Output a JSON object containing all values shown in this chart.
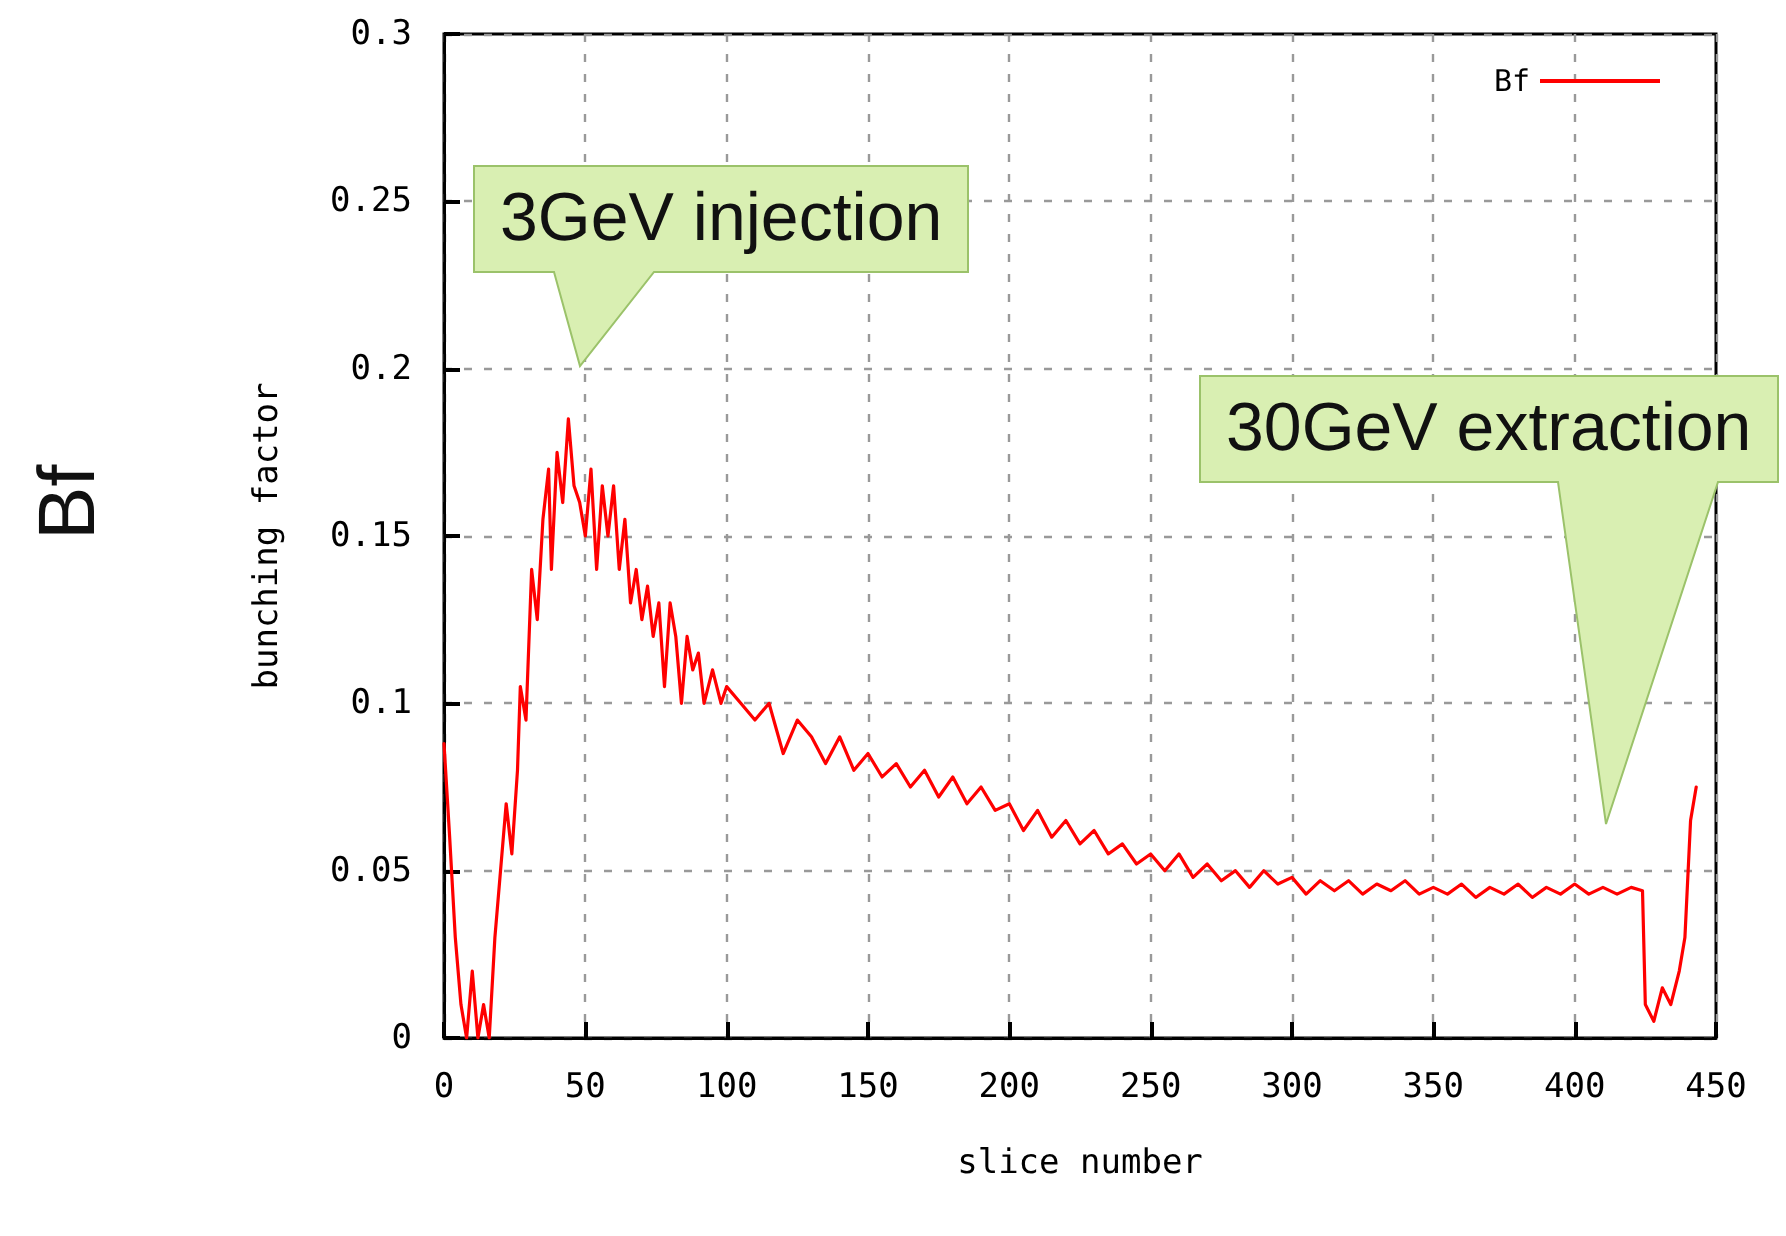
{
  "chart_data": {
    "type": "line",
    "xlabel": "slice number",
    "ylabel": "bunching factor",
    "xlim": [
      0,
      450
    ],
    "xticks": [
      0,
      50,
      100,
      150,
      200,
      250,
      300,
      350,
      400,
      450
    ],
    "ylim": [
      0,
      0.3
    ],
    "yticks": [
      0,
      0.05,
      0.1,
      0.15,
      0.2,
      0.25,
      0.3
    ],
    "grid": true,
    "legend": "top right",
    "marker": "none",
    "line_style": "solid",
    "annotations": [
      "Bf",
      "3GeV injection",
      "30GeV extraction"
    ],
    "series": [
      {
        "name": "Bf",
        "color": "#ff0000",
        "x": [
          0,
          2,
          4,
          6,
          8,
          10,
          12,
          14,
          16,
          18,
          20,
          22,
          24,
          26,
          27,
          29,
          31,
          33,
          35,
          37,
          38,
          40,
          42,
          44,
          46,
          48,
          50,
          52,
          54,
          56,
          58,
          60,
          62,
          64,
          66,
          68,
          70,
          72,
          74,
          76,
          78,
          80,
          82,
          84,
          86,
          88,
          90,
          92,
          95,
          98,
          100,
          105,
          110,
          115,
          120,
          125,
          130,
          135,
          140,
          145,
          150,
          155,
          160,
          165,
          170,
          175,
          180,
          185,
          190,
          195,
          200,
          205,
          210,
          215,
          220,
          225,
          230,
          235,
          240,
          245,
          250,
          255,
          260,
          265,
          270,
          275,
          280,
          285,
          290,
          295,
          300,
          305,
          310,
          315,
          320,
          325,
          330,
          335,
          340,
          345,
          350,
          355,
          360,
          365,
          370,
          375,
          380,
          385,
          390,
          395,
          400,
          405,
          410,
          415,
          420,
          424,
          425,
          428,
          431,
          434,
          437,
          439,
          441,
          443
        ],
        "values": [
          0.088,
          0.06,
          0.03,
          0.01,
          0,
          0.02,
          0,
          0.01,
          0,
          0.03,
          0.05,
          0.07,
          0.055,
          0.08,
          0.105,
          0.095,
          0.14,
          0.125,
          0.155,
          0.17,
          0.14,
          0.175,
          0.16,
          0.185,
          0.165,
          0.16,
          0.15,
          0.17,
          0.14,
          0.165,
          0.15,
          0.165,
          0.14,
          0.155,
          0.13,
          0.14,
          0.125,
          0.135,
          0.12,
          0.13,
          0.105,
          0.13,
          0.12,
          0.1,
          0.12,
          0.11,
          0.115,
          0.1,
          0.11,
          0.1,
          0.105,
          0.1,
          0.095,
          0.1,
          0.085,
          0.095,
          0.09,
          0.082,
          0.09,
          0.08,
          0.085,
          0.078,
          0.082,
          0.075,
          0.08,
          0.072,
          0.078,
          0.07,
          0.075,
          0.068,
          0.07,
          0.062,
          0.068,
          0.06,
          0.065,
          0.058,
          0.062,
          0.055,
          0.058,
          0.052,
          0.055,
          0.05,
          0.055,
          0.048,
          0.052,
          0.047,
          0.05,
          0.045,
          0.05,
          0.046,
          0.048,
          0.043,
          0.047,
          0.044,
          0.047,
          0.043,
          0.046,
          0.044,
          0.047,
          0.043,
          0.045,
          0.043,
          0.046,
          0.042,
          0.045,
          0.043,
          0.046,
          0.042,
          0.045,
          0.043,
          0.046,
          0.043,
          0.045,
          0.043,
          0.045,
          0.044,
          0.01,
          0.005,
          0.015,
          0.01,
          0.02,
          0.03,
          0.065,
          0.075
        ]
      }
    ]
  }
}
